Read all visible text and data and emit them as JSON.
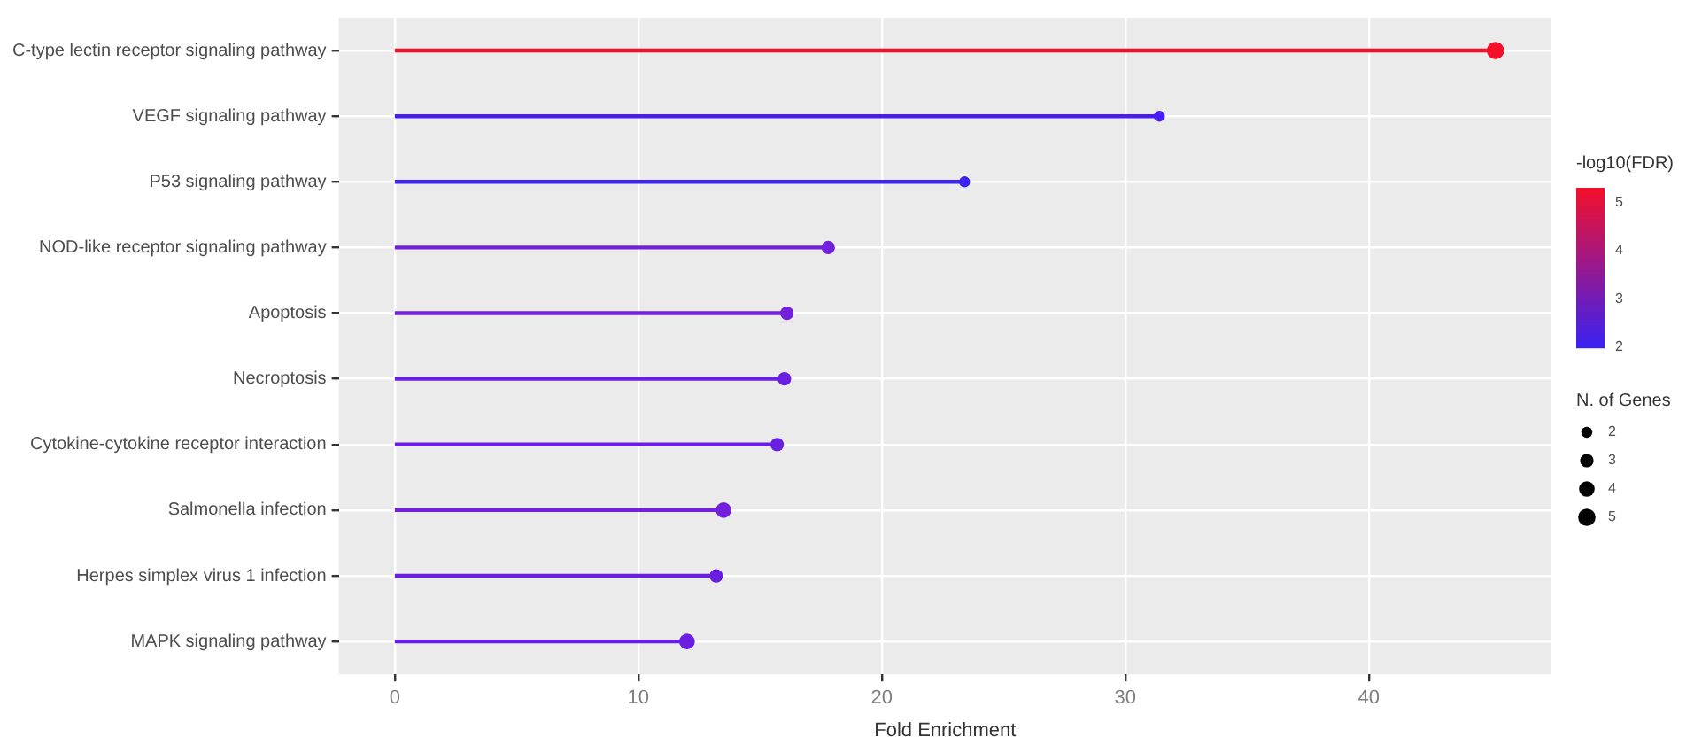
{
  "chart_data": {
    "type": "lollipop",
    "orientation": "horizontal",
    "xlabel": "Fold Enrichment",
    "clabel": "-log10(FDR)",
    "legend_title": "N. of Genes",
    "categories": [
      "C-type lectin receptor signaling pathway",
      "VEGF signaling pathway",
      "P53 signaling pathway",
      "NOD-like receptor signaling pathway",
      "Apoptosis",
      "Necroptosis",
      "Cytokine-cytokine receptor interaction",
      "Salmonella infection",
      "Herpes simplex virus 1 infection",
      "MAPK signaling pathway"
    ],
    "values": [
      45.2,
      31.4,
      23.4,
      17.8,
      16.1,
      16.0,
      15.7,
      13.5,
      13.2,
      12.0
    ],
    "cvalues": [
      5.3,
      2.2,
      2.0,
      2.6,
      2.6,
      2.5,
      2.5,
      2.6,
      2.5,
      2.5
    ],
    "sizes": [
      5,
      2,
      2,
      3,
      3,
      3,
      3,
      4,
      3,
      4
    ],
    "size_legend": [
      2,
      3,
      4,
      5
    ],
    "colors": [
      "#f5102a",
      "#4a1cf2",
      "#3a22f2",
      "#7320dc",
      "#7320dc",
      "#6a1ee0",
      "#6a1ee0",
      "#7320dc",
      "#6a1ee0",
      "#6a1ee0"
    ],
    "clim": [
      2,
      5.3
    ],
    "cticks": [
      2,
      3,
      4,
      5
    ],
    "xlim": [
      -2.3,
      47.5
    ],
    "xticks": [
      0,
      10,
      20,
      30,
      40
    ],
    "grid": true,
    "marker": "circle"
  }
}
